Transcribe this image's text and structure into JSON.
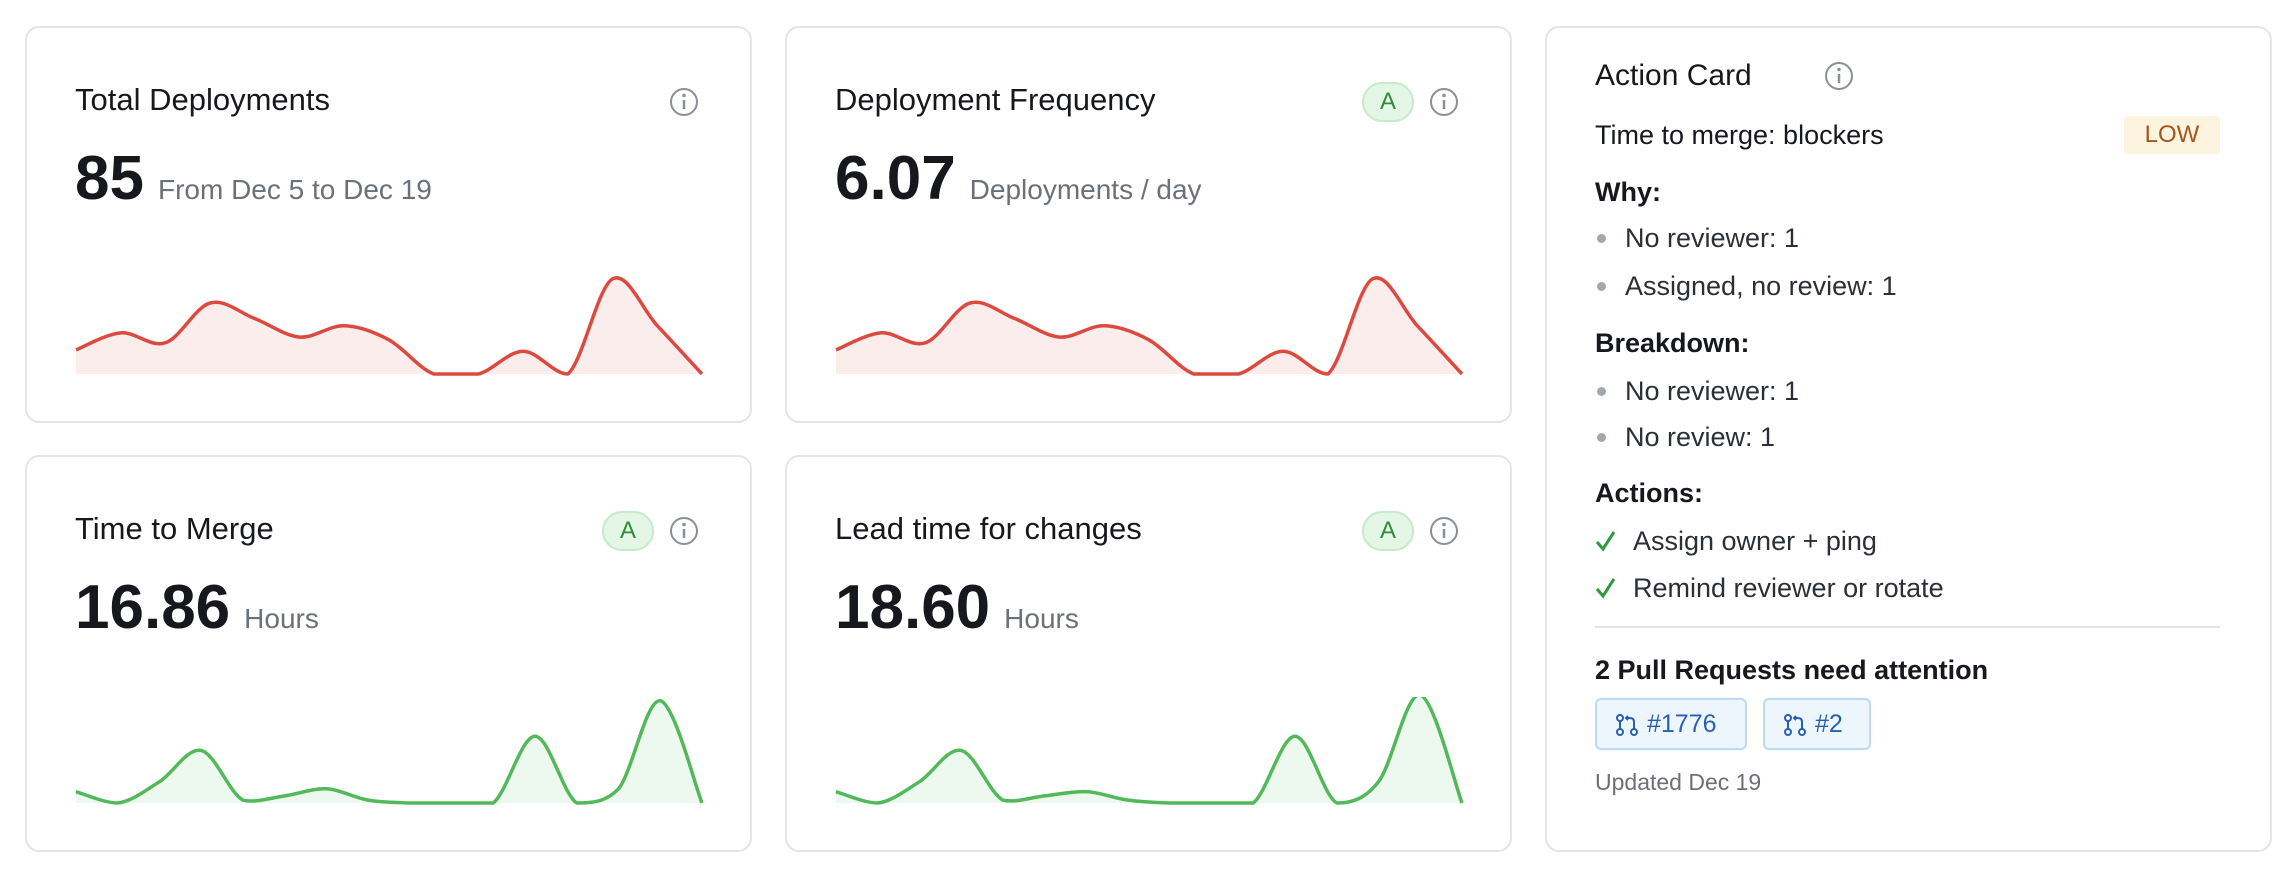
{
  "cards": [
    {
      "title": "Total Deployments",
      "value": "85",
      "unit": "From Dec 5 to Dec 19",
      "sparkline": {
        "type": "line",
        "color": "#dc4a3f",
        "values": [
          17,
          29,
          22,
          50,
          39,
          26,
          34,
          24,
          0,
          0,
          16,
          0,
          67,
          34,
          0
        ]
      }
    },
    {
      "title": "Deployment Frequency",
      "grade": "A",
      "value": "6.07",
      "unit": "Deployments / day",
      "sparkline": {
        "type": "line",
        "color": "#dc4a3f",
        "values": [
          17,
          29,
          22,
          50,
          39,
          26,
          34,
          24,
          0,
          0,
          16,
          0,
          67,
          34,
          0
        ]
      }
    },
    {
      "title": "Time to Merge",
      "grade": "A",
      "value": "16.86",
      "unit": "Hours",
      "sparkline": {
        "type": "line",
        "color": "#52b95a",
        "values": [
          8,
          0,
          15,
          37,
          2,
          5,
          10,
          2,
          0,
          0,
          0,
          47,
          0,
          10,
          72,
          0
        ]
      }
    },
    {
      "title": "Lead time for changes",
      "grade": "A",
      "value": "18.60",
      "unit": "Hours",
      "sparkline": {
        "type": "line",
        "color": "#52b95a",
        "values": [
          8,
          0,
          15,
          37,
          2,
          5,
          8,
          2,
          0,
          0,
          0,
          47,
          0,
          15,
          76,
          0
        ]
      }
    }
  ],
  "action_card": {
    "title": "Action Card",
    "item": {
      "label": "Time to merge: blockers",
      "badge": "LOW"
    },
    "why": {
      "heading": "Why:",
      "items": [
        "No reviewer: 1",
        "Assigned, no review: 1"
      ]
    },
    "breakdown": {
      "heading": "Breakdown:",
      "items": [
        "No reviewer: 1",
        "No review: 1"
      ]
    },
    "actions": {
      "heading": "Actions:",
      "items": [
        "Assign owner + ping",
        "Remind reviewer or rotate"
      ]
    },
    "pull_requests": {
      "heading": "2 Pull Requests need attention",
      "items": [
        "#1776",
        "#2"
      ]
    },
    "updated": "Updated Dec 19"
  }
}
